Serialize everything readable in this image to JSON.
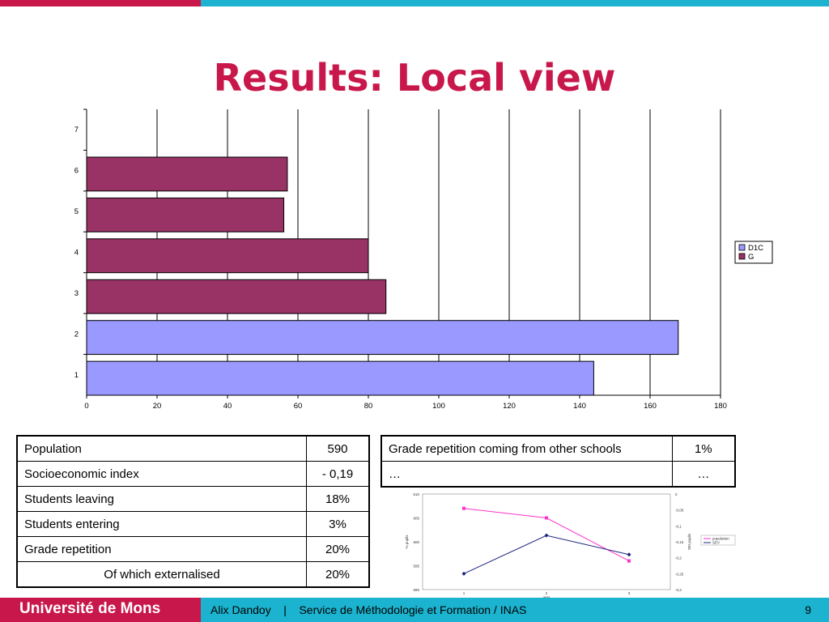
{
  "slide": {
    "title": "Results: Local view",
    "footer_university": "Université de Mons",
    "footer_text": "Alix Dandoy    |    Service de Méthodologie et Formation / INAS",
    "page_number": "9"
  },
  "colors": {
    "accent": "#c8174a",
    "accent2": "#1bb3cf",
    "series_D1C": "#9999ff",
    "series_G": "#993366"
  },
  "table_left": [
    {
      "label": "Population",
      "value": "590"
    },
    {
      "label": "Socioeconomic index",
      "value": "- 0,19"
    },
    {
      "label": "Students leaving",
      "value": "18%"
    },
    {
      "label": "Students entering",
      "value": "3%"
    },
    {
      "label": "Grade repetition",
      "value": "20%"
    },
    {
      "label": "Of which externalised",
      "value": "20%"
    }
  ],
  "table_right": [
    {
      "label": "Grade repetition coming from other schools",
      "value": "1%"
    },
    {
      "label": "…",
      "value": "…"
    }
  ],
  "chart_data": [
    {
      "type": "bar",
      "orientation": "horizontal",
      "categories": [
        "1",
        "2",
        "3",
        "4",
        "5",
        "6",
        "7"
      ],
      "series": [
        {
          "name": "D1C",
          "values": [
            144,
            168,
            null,
            null,
            null,
            null,
            null
          ]
        },
        {
          "name": "G",
          "values": [
            null,
            null,
            85,
            80,
            56,
            57,
            null
          ]
        }
      ],
      "xlim": [
        0,
        180
      ],
      "xticks": [
        "0",
        "20",
        "40",
        "60",
        "80",
        "100",
        "120",
        "140",
        "160",
        "180"
      ],
      "grid": "vertical",
      "legend": "right"
    },
    {
      "type": "line",
      "x": [
        "1",
        "2",
        "3"
      ],
      "series": [
        {
          "name": "population",
          "axis": "left",
          "values": [
            607,
            605,
            596
          ]
        },
        {
          "name": "SEV",
          "axis": "right",
          "values": [
            -0.25,
            -0.13,
            -0.19
          ]
        }
      ],
      "xlabel": "year",
      "ylabel": "% pupils",
      "y2label": "SEI pupils",
      "ylim": [
        590,
        610
      ],
      "yticks": [
        "590",
        "595",
        "600",
        "605",
        "610"
      ],
      "y2lim": [
        -0.3,
        0
      ],
      "y2ticks": [
        "0",
        "-0,05",
        "-0,1",
        "-0,15",
        "-0,2",
        "-0,25",
        "-0,3"
      ],
      "legend": "right"
    }
  ]
}
